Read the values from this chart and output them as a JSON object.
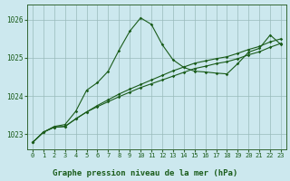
{
  "title": "Graphe pression niveau de la mer (hPa)",
  "bg_color": "#cce8ee",
  "line_color": "#1a5c1a",
  "grid_color": "#99bbbb",
  "xlim": [
    -0.5,
    23.5
  ],
  "ylim": [
    1022.6,
    1026.4
  ],
  "yticks": [
    1023,
    1024,
    1025,
    1026
  ],
  "xticks": [
    0,
    1,
    2,
    3,
    4,
    5,
    6,
    7,
    8,
    9,
    10,
    11,
    12,
    13,
    14,
    15,
    16,
    17,
    18,
    19,
    20,
    21,
    22,
    23
  ],
  "line1_x": [
    0,
    1,
    2,
    3,
    4,
    5,
    6,
    7,
    8,
    9,
    10,
    11,
    12,
    13,
    14,
    15,
    16,
    17,
    18,
    19,
    20,
    21,
    22,
    23
  ],
  "line1_y": [
    1022.78,
    1023.05,
    1023.2,
    1023.25,
    1023.6,
    1024.15,
    1024.35,
    1024.65,
    1025.2,
    1025.7,
    1026.05,
    1025.88,
    1025.35,
    1024.95,
    1024.75,
    1024.65,
    1024.63,
    1024.6,
    1024.58,
    1024.85,
    1025.15,
    1025.25,
    1025.6,
    1025.35
  ],
  "line2_x": [
    0,
    1,
    2,
    3,
    4,
    5,
    6,
    7,
    8,
    9,
    10,
    11,
    12,
    13,
    14,
    15,
    16,
    17,
    18,
    19,
    20,
    21,
    22,
    23
  ],
  "line2_y": [
    1022.78,
    1023.05,
    1023.18,
    1023.2,
    1023.4,
    1023.58,
    1023.75,
    1023.9,
    1024.05,
    1024.18,
    1024.3,
    1024.42,
    1024.54,
    1024.66,
    1024.76,
    1024.86,
    1024.92,
    1024.98,
    1025.03,
    1025.12,
    1025.22,
    1025.3,
    1025.42,
    1025.5
  ],
  "line3_x": [
    0,
    1,
    2,
    3,
    4,
    5,
    6,
    7,
    8,
    9,
    10,
    11,
    12,
    13,
    14,
    15,
    16,
    17,
    18,
    19,
    20,
    21,
    22,
    23
  ],
  "line3_y": [
    1022.78,
    1023.05,
    1023.18,
    1023.2,
    1023.4,
    1023.58,
    1023.72,
    1023.85,
    1023.98,
    1024.1,
    1024.22,
    1024.32,
    1024.42,
    1024.52,
    1024.62,
    1024.72,
    1024.78,
    1024.85,
    1024.9,
    1024.98,
    1025.08,
    1025.16,
    1025.28,
    1025.38
  ]
}
